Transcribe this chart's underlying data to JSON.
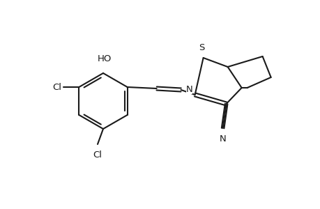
{
  "bg_color": "#ffffff",
  "line_color": "#1a1a1a",
  "line_width": 1.5,
  "font_size": 9.5,
  "figsize": [
    4.6,
    3.0
  ],
  "dpi": 100,
  "xlim": [
    0,
    460
  ],
  "ylim": [
    0,
    300
  ]
}
